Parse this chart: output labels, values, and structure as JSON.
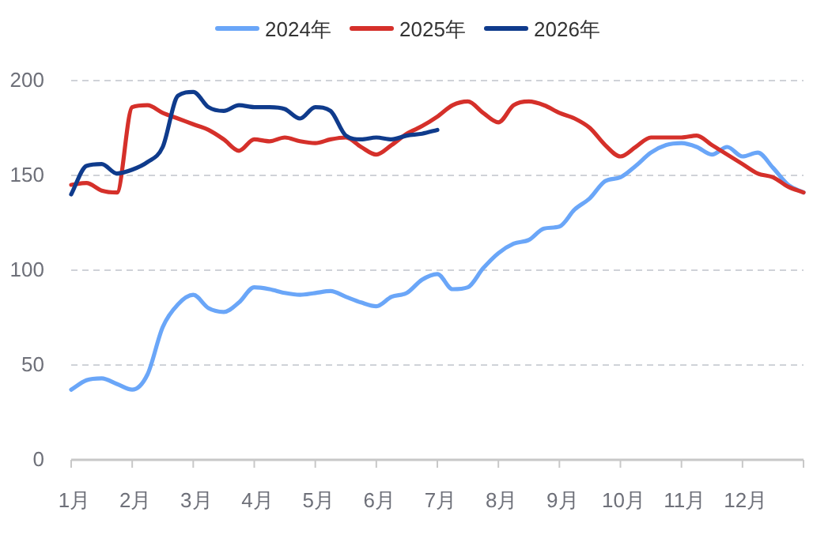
{
  "chart_data": {
    "type": "line",
    "categories": [
      "1月",
      null,
      null,
      null,
      "2月",
      null,
      null,
      null,
      "3月",
      null,
      null,
      null,
      "4月",
      null,
      null,
      null,
      "5月",
      null,
      null,
      null,
      "6月",
      null,
      null,
      null,
      "7月",
      null,
      null,
      null,
      "8月",
      null,
      null,
      null,
      "9月",
      null,
      null,
      null,
      "10月",
      null,
      null,
      null,
      "11月",
      null,
      null,
      null,
      "12月",
      null,
      null,
      null,
      null
    ],
    "series": [
      {
        "name": "2024年",
        "color": "#6aa6f8",
        "values": [
          37,
          42,
          43,
          40,
          37,
          45,
          70,
          82,
          87,
          80,
          78,
          83,
          91,
          90,
          88,
          87,
          88,
          89,
          86,
          83,
          81,
          86,
          88,
          95,
          98,
          90,
          91,
          101,
          109,
          114,
          116,
          122,
          123,
          132,
          138,
          147,
          149,
          155,
          162,
          166,
          167,
          165,
          161,
          165,
          160,
          162,
          154,
          145,
          141
        ]
      },
      {
        "name": "2025年",
        "color": "#d5302a",
        "values": [
          145,
          146,
          142,
          141,
          186,
          187,
          183,
          180,
          177,
          174,
          169,
          163,
          169,
          168,
          170,
          168,
          167,
          169,
          170,
          165,
          161,
          166,
          172,
          176,
          181,
          187,
          189,
          183,
          178,
          187,
          189,
          187,
          183,
          180,
          175,
          166,
          160,
          165,
          170,
          170,
          170,
          171,
          166,
          161,
          156,
          151,
          149,
          144,
          141
        ]
      },
      {
        "name": "2026年",
        "color": "#0f3b8c",
        "values": [
          140,
          155,
          156,
          151,
          153,
          157,
          165,
          192,
          194,
          186,
          184,
          187,
          186,
          186,
          185,
          180,
          186,
          184,
          171,
          169,
          170,
          169,
          171,
          172,
          174,
          null,
          null,
          null,
          null,
          null,
          null,
          null,
          null,
          null,
          null,
          null,
          null,
          null,
          null,
          null,
          null,
          null,
          null,
          null,
          null,
          null,
          null,
          null,
          null
        ]
      }
    ],
    "ylim": [
      0,
      200
    ],
    "yticks": [
      0,
      50,
      100,
      150,
      200
    ],
    "grid": "y",
    "legend": "top",
    "marker": "none",
    "line_style": "solid"
  }
}
